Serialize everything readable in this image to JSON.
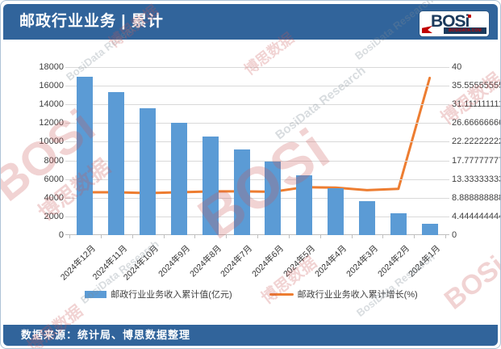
{
  "header": {
    "title": "邮政行业业务 | 累计",
    "logo": {
      "text": "BOSi",
      "site": "BOSIDATA.COM"
    }
  },
  "footer": {
    "source": "数据来源：统计局、博思数据整理"
  },
  "watermark": {
    "cn": "博思数据",
    "en": "BosiData Research",
    "logo": "BOSi"
  },
  "colors": {
    "header_bg": "#31649B",
    "bar": "#5B9BD5",
    "line": "#ED7D31",
    "grid": "#D9D9D9",
    "axis_line": "#BFBFBF",
    "axis_text": "#404040",
    "logo_navy": "#1B3A5C",
    "logo_red": "#C00000"
  },
  "chart_data": {
    "type": "bar",
    "subtype": "bar+line combo",
    "title": "邮政行业业务 | 累计",
    "categories": [
      "2024年12月",
      "2024年11月",
      "2024年10月",
      "2024年9月",
      "2024年8月",
      "2024年7月",
      "2024年6月",
      "2024年5月",
      "2024年4月",
      "2024年3月",
      "2024年2月",
      "2024年1月"
    ],
    "series": [
      {
        "name": "邮政行业业务收入累计值(亿元)",
        "type": "bar",
        "axis": "left",
        "color": "#5B9BD5",
        "values": [
          16950,
          15300,
          13550,
          12050,
          10600,
          9200,
          7900,
          6400,
          5050,
          3650,
          2300,
          1230
        ]
      },
      {
        "name": "邮政行业业务收入累计增长(%)",
        "type": "line",
        "axis": "right",
        "color": "#ED7D31",
        "values": [
          10.2,
          10.2,
          10.0,
          10.2,
          10.4,
          10.4,
          10.3,
          11.4,
          11.3,
          10.7,
          11.0,
          37.4
        ]
      }
    ],
    "left_axis": {
      "min": 0,
      "max": 18000,
      "step": 2000
    },
    "right_axis": {
      "min": 0,
      "max": 40,
      "step": 5
    },
    "grid": true,
    "legend_position": "bottom"
  }
}
